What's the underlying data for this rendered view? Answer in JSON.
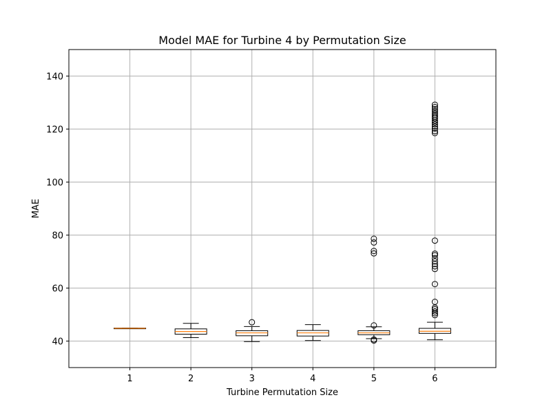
{
  "chart_data": {
    "type": "box",
    "title": "Model MAE for Turbine 4 by Permutation Size",
    "xlabel": "Turbine Permutation Size",
    "ylabel": "MAE",
    "ylim": [
      30,
      150
    ],
    "yticks": [
      40,
      60,
      80,
      100,
      120,
      140
    ],
    "grid": true,
    "categories": [
      "1",
      "2",
      "3",
      "4",
      "5",
      "6"
    ],
    "boxes": [
      {
        "category": "1",
        "whisker_low": 44.8,
        "q1": 44.8,
        "median": 44.8,
        "q3": 44.9,
        "whisker_high": 44.9,
        "outliers": []
      },
      {
        "category": "2",
        "whisker_low": 41.3,
        "q1": 42.6,
        "median": 43.6,
        "q3": 44.6,
        "whisker_high": 46.7,
        "outliers": []
      },
      {
        "category": "3",
        "whisker_low": 39.8,
        "q1": 42.0,
        "median": 43.1,
        "q3": 43.9,
        "whisker_high": 45.5,
        "outliers": [
          47.1
        ]
      },
      {
        "category": "4",
        "whisker_low": 40.2,
        "q1": 41.9,
        "median": 43.1,
        "q3": 44.0,
        "whisker_high": 46.2,
        "outliers": []
      },
      {
        "category": "5",
        "whisker_low": 40.9,
        "q1": 42.4,
        "median": 43.1,
        "q3": 43.9,
        "whisker_high": 45.4,
        "outliers": [
          40.2,
          40.6,
          45.9,
          73.1,
          74.0,
          77.2,
          78.6
        ]
      },
      {
        "category": "6",
        "whisker_low": 40.5,
        "q1": 42.9,
        "median": 43.7,
        "q3": 44.8,
        "whisker_high": 47.1,
        "outliers": [
          49.8,
          50.5,
          51.2,
          52.0,
          52.6,
          54.8,
          61.5,
          67.2,
          68.2,
          69.1,
          70.1,
          71.2,
          72.4,
          73.0,
          77.9,
          118.5,
          119.2,
          120.2,
          121.0,
          121.8,
          122.5,
          123.2,
          124.0,
          124.6,
          125.3,
          126.0,
          126.8,
          127.5,
          128.3,
          129.2
        ]
      }
    ]
  }
}
